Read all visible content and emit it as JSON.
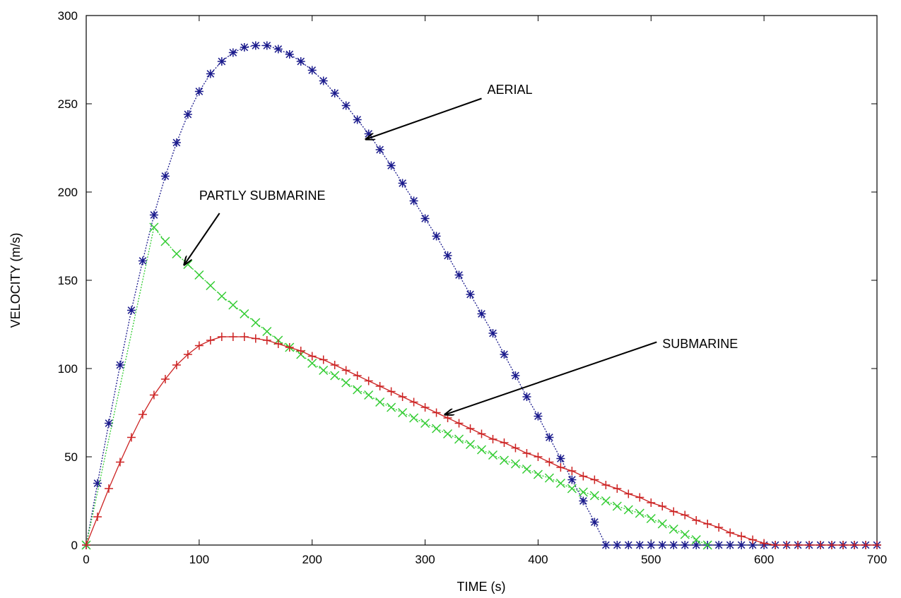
{
  "chart_data": {
    "type": "line",
    "title": "",
    "xlabel": "TIME (s)",
    "ylabel": "VELOCITY (m/s)",
    "xlim": [
      0,
      700
    ],
    "ylim": [
      0,
      300
    ],
    "xticks": [
      0,
      100,
      200,
      300,
      400,
      500,
      600,
      700
    ],
    "yticks": [
      0,
      50,
      100,
      150,
      200,
      250,
      300
    ],
    "grid": false,
    "legend": "none",
    "series": [
      {
        "name": "AERIAL",
        "color": "#1a1a8c",
        "marker": "star",
        "line_style": "dotted",
        "x": [
          0,
          10,
          20,
          30,
          40,
          50,
          60,
          70,
          80,
          90,
          100,
          110,
          120,
          130,
          140,
          150,
          160,
          170,
          180,
          190,
          200,
          210,
          220,
          230,
          240,
          250,
          260,
          270,
          280,
          290,
          300,
          310,
          320,
          330,
          340,
          350,
          360,
          370,
          380,
          390,
          400,
          410,
          420,
          430,
          440,
          450,
          460,
          470,
          480,
          490,
          500,
          510,
          520,
          530,
          540,
          550,
          560,
          570,
          580,
          590,
          600,
          610,
          620,
          630,
          640,
          650,
          660,
          670,
          680,
          690,
          700
        ],
        "y": [
          0,
          35,
          69,
          102,
          133,
          161,
          187,
          209,
          228,
          244,
          257,
          267,
          274,
          279,
          282,
          283,
          283,
          281,
          278,
          274,
          269,
          263,
          256,
          249,
          241,
          233,
          224,
          215,
          205,
          195,
          185,
          175,
          164,
          153,
          142,
          131,
          120,
          108,
          96,
          84,
          73,
          61,
          49,
          37,
          25,
          13,
          0,
          0,
          0,
          0,
          0,
          0,
          0,
          0,
          0,
          0,
          0,
          0,
          0,
          0,
          0,
          0,
          0,
          0,
          0,
          0,
          0,
          0,
          0,
          0,
          0
        ]
      },
      {
        "name": "PARTLY SUBMARINE",
        "color": "#33cc33",
        "marker": "x",
        "line_style": "dotted",
        "x": [
          0,
          60,
          70,
          80,
          90,
          100,
          110,
          120,
          130,
          140,
          150,
          160,
          170,
          180,
          190,
          200,
          210,
          220,
          230,
          240,
          250,
          260,
          270,
          280,
          290,
          300,
          310,
          320,
          330,
          340,
          350,
          360,
          370,
          380,
          390,
          400,
          410,
          420,
          430,
          440,
          450,
          460,
          470,
          480,
          490,
          500,
          510,
          520,
          530,
          540,
          550
        ],
        "y": [
          0,
          180,
          172,
          165,
          159,
          153,
          147,
          141,
          136,
          131,
          126,
          121,
          116,
          112,
          108,
          103,
          99,
          96,
          92,
          88,
          85,
          81,
          78,
          75,
          72,
          69,
          66,
          63,
          60,
          57,
          54,
          51,
          48,
          46,
          43,
          40,
          38,
          35,
          32,
          30,
          28,
          25,
          22,
          20,
          18,
          15,
          12,
          9,
          6,
          3,
          0
        ]
      },
      {
        "name": "SUBMARINE",
        "color": "#cc2222",
        "marker": "plus",
        "line_style": "solid",
        "x": [
          0,
          10,
          20,
          30,
          40,
          50,
          60,
          70,
          80,
          90,
          100,
          110,
          120,
          130,
          140,
          150,
          160,
          170,
          180,
          190,
          200,
          210,
          220,
          230,
          240,
          250,
          260,
          270,
          280,
          290,
          300,
          310,
          320,
          330,
          340,
          350,
          360,
          370,
          380,
          390,
          400,
          410,
          420,
          430,
          440,
          450,
          460,
          470,
          480,
          490,
          500,
          510,
          520,
          530,
          540,
          550,
          560,
          570,
          580,
          590,
          600,
          610,
          620,
          630,
          640,
          650,
          660,
          670,
          680,
          690,
          700
        ],
        "y": [
          0,
          16,
          32,
          47,
          61,
          74,
          85,
          94,
          102,
          108,
          113,
          116,
          118,
          118,
          118,
          117,
          116,
          114,
          112,
          110,
          107,
          105,
          102,
          99,
          96,
          93,
          90,
          87,
          84,
          81,
          78,
          75,
          72,
          69,
          66,
          63,
          60,
          58,
          55,
          52,
          50,
          47,
          44,
          42,
          39,
          37,
          34,
          32,
          29,
          27,
          24,
          22,
          19,
          17,
          14,
          12,
          10,
          7,
          5,
          3,
          1,
          0,
          0,
          0,
          0,
          0,
          0,
          0,
          0,
          0,
          0
        ]
      }
    ],
    "annotations": [
      {
        "text": "AERIAL",
        "label_at": [
          355,
          258
        ],
        "arrow_from": [
          350,
          253
        ],
        "arrow_to": [
          248,
          230
        ]
      },
      {
        "text": "PARTLY SUBMARINE",
        "label_at": [
          100,
          198
        ],
        "arrow_from": [
          118,
          188
        ],
        "arrow_to": [
          87,
          159
        ]
      },
      {
        "text": "SUBMARINE",
        "label_at": [
          510,
          114
        ],
        "arrow_from": [
          505,
          115
        ],
        "arrow_to": [
          318,
          74
        ]
      }
    ]
  }
}
